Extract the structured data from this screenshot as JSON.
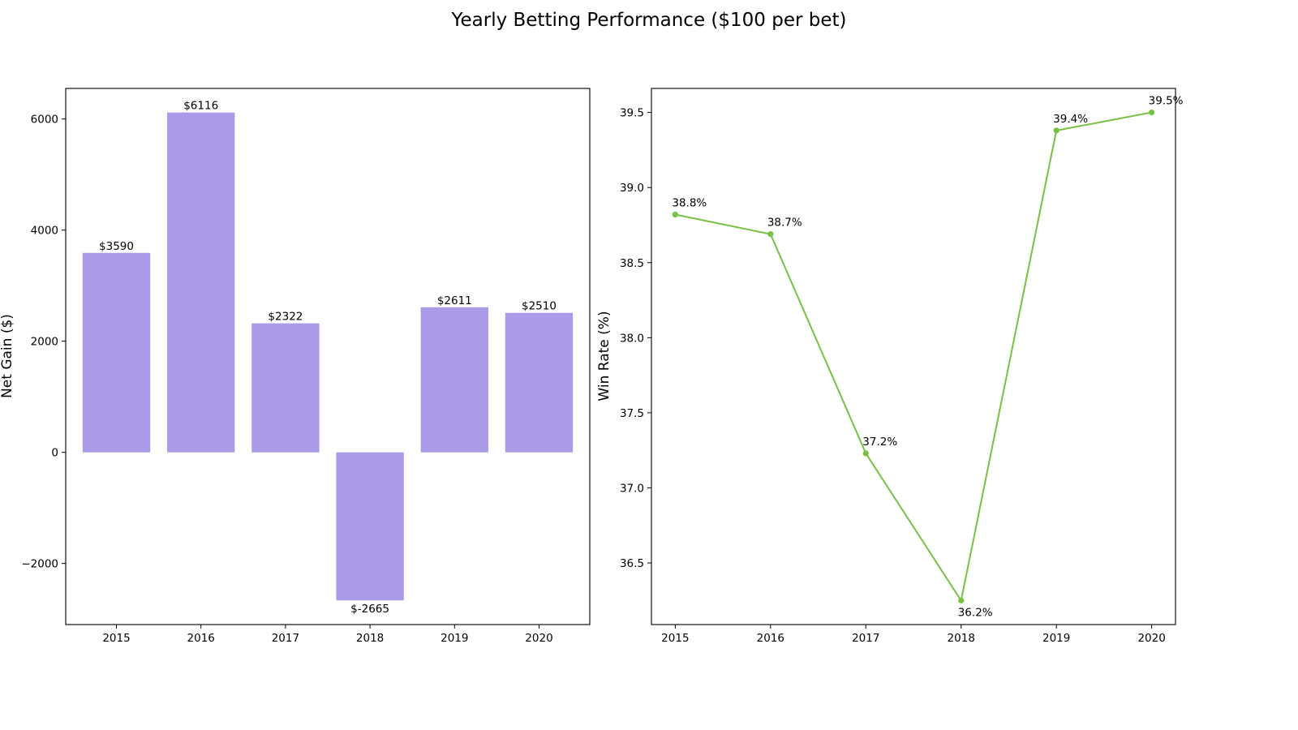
{
  "title": "Yearly Betting Performance ($100 per bet)",
  "colors": {
    "bar": "#ab9ae7",
    "line": "#77c143"
  },
  "chart_data": [
    {
      "type": "bar",
      "categories": [
        "2015",
        "2016",
        "2017",
        "2018",
        "2019",
        "2020"
      ],
      "values": [
        3590,
        6116,
        2322,
        -2665,
        2611,
        2510
      ],
      "data_labels": [
        "$3590",
        "$6116",
        "$2322",
        "$-2665",
        "$2611",
        "$2510"
      ],
      "xlabel": "",
      "ylabel": "Net Gain ($)",
      "ylim": [
        -3100,
        6550
      ],
      "yticks": [
        -2000,
        0,
        2000,
        4000,
        6000
      ],
      "ytick_labels": [
        "−2000",
        "0",
        "2000",
        "4000",
        "6000"
      ],
      "grid": false
    },
    {
      "type": "line",
      "categories": [
        "2015",
        "2016",
        "2017",
        "2018",
        "2019",
        "2020"
      ],
      "values": [
        38.82,
        38.69,
        37.23,
        36.25,
        39.38,
        39.5
      ],
      "data_labels": [
        "38.8%",
        "38.7%",
        "37.2%",
        "36.2%",
        "39.4%",
        "39.5%"
      ],
      "xlabel": "",
      "ylabel": "Win Rate (%)",
      "ylim": [
        36.09,
        39.66
      ],
      "yticks": [
        36.5,
        37.0,
        37.5,
        38.0,
        38.5,
        39.0,
        39.5
      ],
      "ytick_labels": [
        "36.5",
        "37.0",
        "37.5",
        "38.0",
        "38.5",
        "39.0",
        "39.5"
      ],
      "grid": false
    }
  ]
}
